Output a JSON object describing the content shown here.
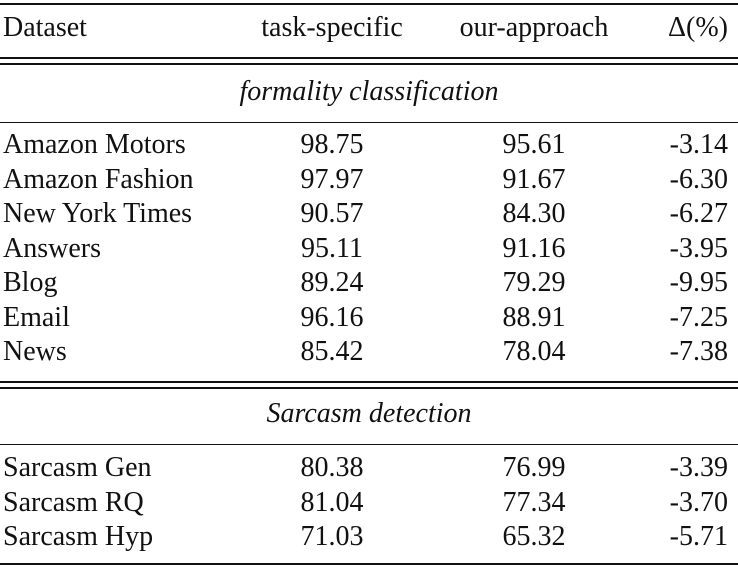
{
  "table": {
    "header": [
      "Dataset",
      "task-specific",
      "our-approach",
      "Δ(%)"
    ],
    "sections": [
      {
        "title": "formality classification",
        "rows": [
          [
            "Amazon Motors",
            "98.75",
            "95.61",
            "-3.14"
          ],
          [
            "Amazon Fashion",
            "97.97",
            "91.67",
            "-6.30"
          ],
          [
            "New York Times",
            "90.57",
            "84.30",
            "-6.27"
          ],
          [
            "Answers",
            "95.11",
            "91.16",
            "-3.95"
          ],
          [
            "Blog",
            "89.24",
            "79.29",
            "-9.95"
          ],
          [
            "Email",
            "96.16",
            "88.91",
            "-7.25"
          ],
          [
            "News",
            "85.42",
            "78.04",
            "-7.38"
          ]
        ]
      },
      {
        "title": "Sarcasm detection",
        "rows": [
          [
            "Sarcasm Gen",
            "80.38",
            "76.99",
            "-3.39"
          ],
          [
            "Sarcasm RQ",
            "81.04",
            "77.34",
            "-3.70"
          ],
          [
            "Sarcasm Hyp",
            "71.03",
            "65.32",
            "-5.71"
          ]
        ]
      }
    ]
  }
}
